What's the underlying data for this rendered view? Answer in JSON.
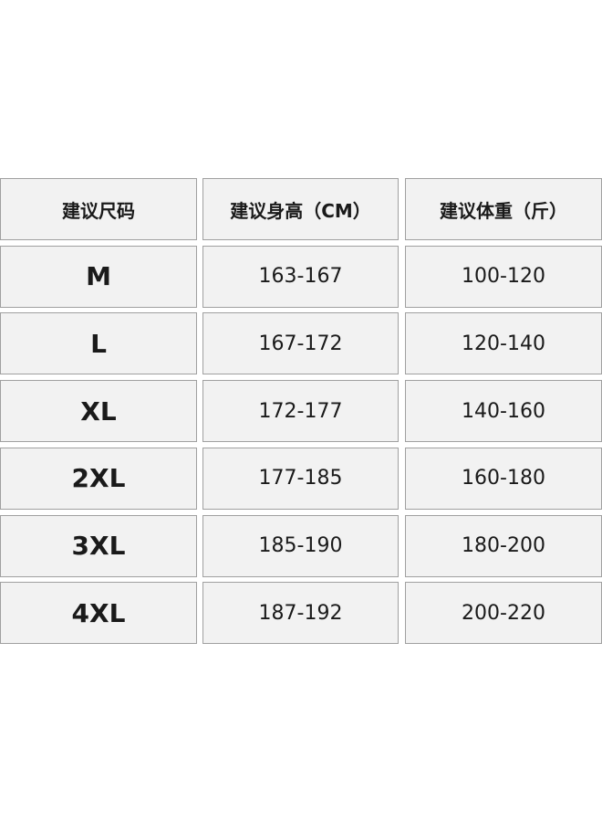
{
  "table": {
    "header": [
      "建议尺码",
      "建议身高（CM）",
      "建议体重（斤）"
    ],
    "rows": [
      [
        "M",
        "163-167",
        "100-120"
      ],
      [
        "L",
        "167-172",
        "120-140"
      ],
      [
        "XL",
        "172-177",
        "140-160"
      ],
      [
        "2XL",
        "177-185",
        "160-180"
      ],
      [
        "3XL",
        "185-190",
        "180-200"
      ],
      [
        "4XL",
        "187-192",
        "200-220"
      ]
    ]
  }
}
